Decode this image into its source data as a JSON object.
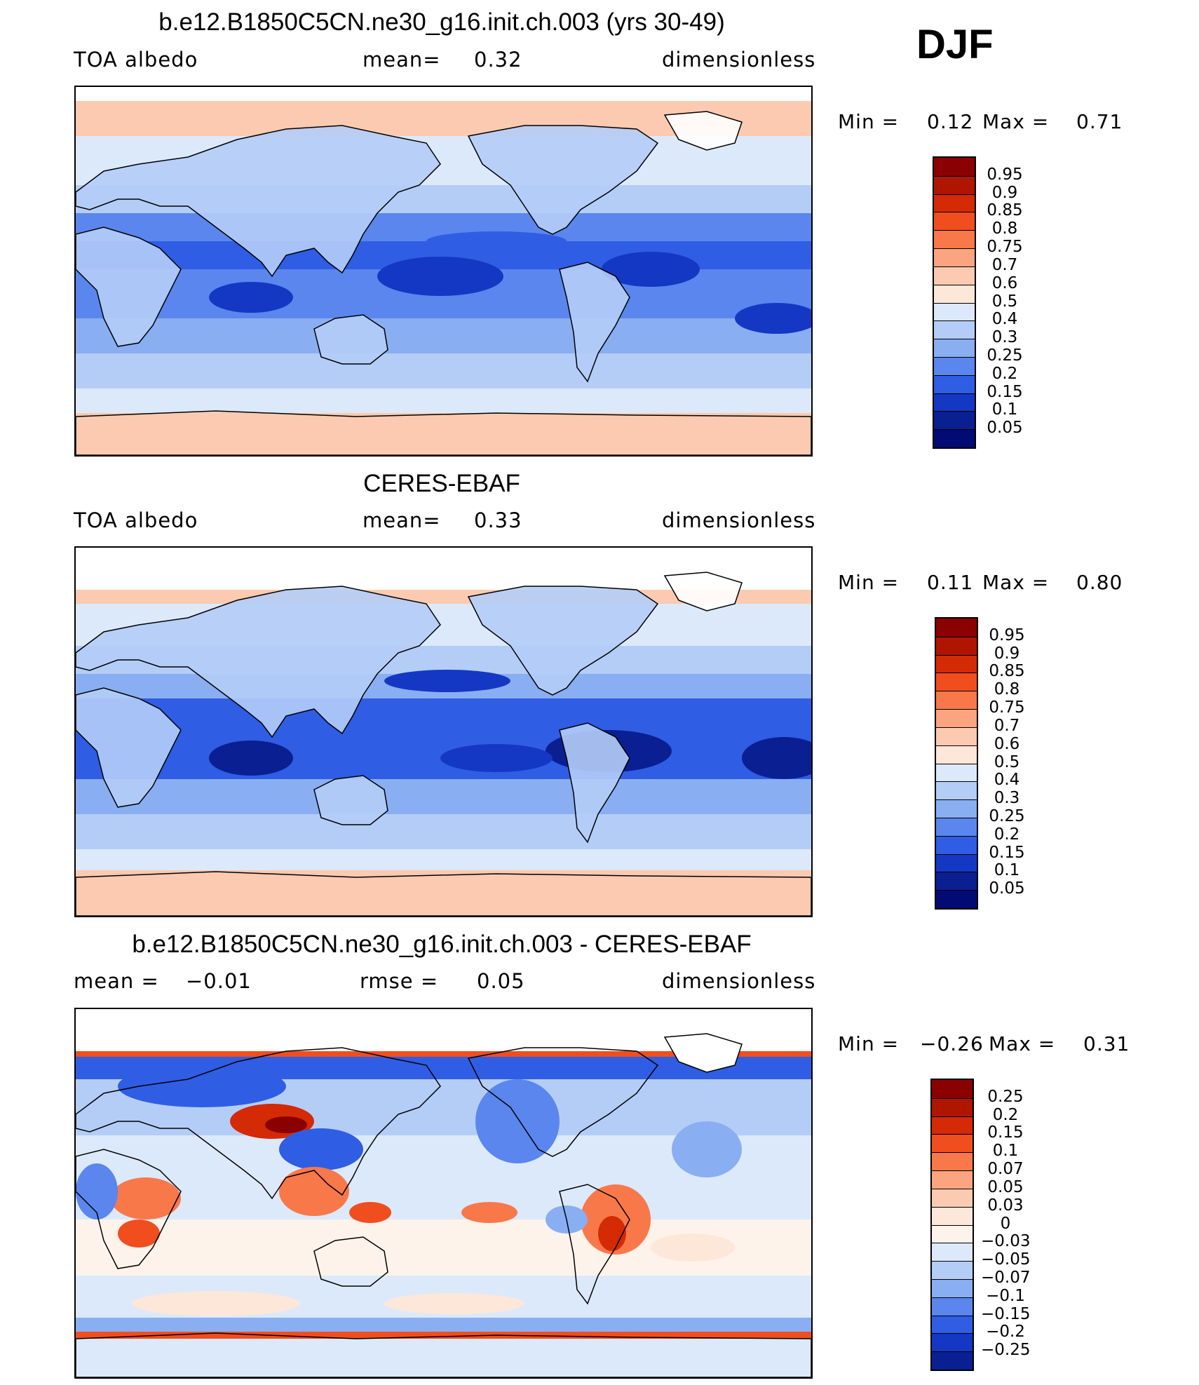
{
  "season": "DJF",
  "panels": [
    {
      "title": "b.e12.B1850C5CN.ne30_g16.init.ch.003 (yrs 30-49)",
      "left_label": "TOA  albedo",
      "mid_label": "mean=",
      "mid_value": "0.32",
      "right_label": "dimensionless",
      "min_label": "Min  =",
      "min_value": "0.12",
      "max_label": "Max  =",
      "max_value": "0.71",
      "levels": [
        "0.95",
        "0.9",
        "0.85",
        "0.8",
        "0.75",
        "0.7",
        "0.6",
        "0.5",
        "0.4",
        "0.3",
        "0.25",
        "0.2",
        "0.15",
        "0.1",
        "0.05"
      ]
    },
    {
      "title": "CERES-EBAF",
      "left_label": "TOA  albedo",
      "mid_label": "mean=",
      "mid_value": "0.33",
      "right_label": "dimensionless",
      "min_label": "Min  =",
      "min_value": "0.11",
      "max_label": "Max  =",
      "max_value": "0.80",
      "levels": [
        "0.95",
        "0.9",
        "0.85",
        "0.8",
        "0.75",
        "0.7",
        "0.6",
        "0.5",
        "0.4",
        "0.3",
        "0.25",
        "0.2",
        "0.15",
        "0.1",
        "0.05"
      ]
    },
    {
      "title": "b.e12.B1850C5CN.ne30_g16.init.ch.003 - CERES-EBAF",
      "left_label": "mean  =",
      "left_value": "−0.01",
      "mid_label": "rmse  =",
      "mid_value": "0.05",
      "right_label": "dimensionless",
      "min_label": "Min  =",
      "min_value": "−0.26",
      "max_label": "Max  =",
      "max_value": "0.31",
      "levels": [
        "0.25",
        "0.2",
        "0.15",
        "0.1",
        "0.07",
        "0.05",
        "0.03",
        "0",
        "−0.03",
        "−0.05",
        "−0.07",
        "−0.1",
        "−0.15",
        "−0.2",
        "−0.25"
      ]
    }
  ],
  "colors": {
    "abs_scale": [
      "#8b0000",
      "#b01500",
      "#d42a05",
      "#f04e1e",
      "#f8784a",
      "#fba47f",
      "#fccab0",
      "#fde7d8",
      "#dce9fa",
      "#b4cdf7",
      "#89aef2",
      "#5a86ee",
      "#2f5de4",
      "#1438c4",
      "#0a1f92",
      "#020b73"
    ],
    "diff_scale": [
      "#8b0000",
      "#b01500",
      "#d42a05",
      "#f04e1e",
      "#f8784a",
      "#fba47f",
      "#fccab0",
      "#fde7d8",
      "#fdf3eb",
      "#dce9fa",
      "#b4cdf7",
      "#89aef2",
      "#5a86ee",
      "#2f5de4",
      "#1438c4",
      "#0a1f92",
      "#020b73"
    ]
  },
  "chart_data": [
    {
      "type": "heatmap",
      "title": "b.e12.B1850C5CN.ne30_g16.init.ch.003 (yrs 30-49)",
      "variable": "TOA albedo",
      "units": "dimensionless",
      "mean": 0.32,
      "min": 0.12,
      "max": 0.71,
      "contour_levels": [
        0.05,
        0.1,
        0.15,
        0.2,
        0.25,
        0.3,
        0.4,
        0.5,
        0.6,
        0.7,
        0.75,
        0.8,
        0.85,
        0.9,
        0.95
      ],
      "season": "DJF"
    },
    {
      "type": "heatmap",
      "title": "CERES-EBAF",
      "variable": "TOA albedo",
      "units": "dimensionless",
      "mean": 0.33,
      "min": 0.11,
      "max": 0.8,
      "contour_levels": [
        0.05,
        0.1,
        0.15,
        0.2,
        0.25,
        0.3,
        0.4,
        0.5,
        0.6,
        0.7,
        0.75,
        0.8,
        0.85,
        0.9,
        0.95
      ],
      "season": "DJF"
    },
    {
      "type": "heatmap",
      "title": "b.e12.B1850C5CN.ne30_g16.init.ch.003 - CERES-EBAF",
      "units": "dimensionless",
      "mean": -0.01,
      "rmse": 0.05,
      "min": -0.26,
      "max": 0.31,
      "contour_levels": [
        -0.25,
        -0.2,
        -0.15,
        -0.1,
        -0.07,
        -0.05,
        -0.03,
        0,
        0.03,
        0.05,
        0.07,
        0.1,
        0.15,
        0.2,
        0.25
      ],
      "season": "DJF"
    }
  ]
}
